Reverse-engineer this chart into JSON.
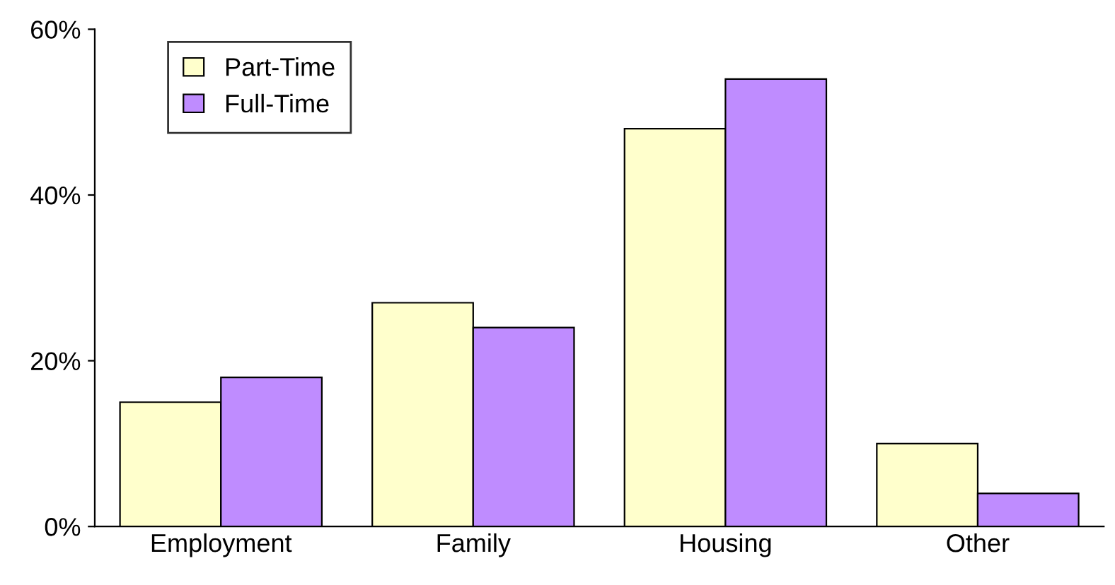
{
  "chart_data": {
    "type": "bar",
    "categories": [
      "Employment",
      "Family",
      "Housing",
      "Other"
    ],
    "series": [
      {
        "name": "Part-Time",
        "color": "#ffffcc",
        "values": [
          15,
          27,
          48,
          10
        ]
      },
      {
        "name": "Full-Time",
        "color": "#bf8cff",
        "values": [
          18,
          24,
          54,
          4
        ]
      }
    ],
    "ylim": [
      0,
      60
    ],
    "yticks": [
      {
        "value": 0,
        "label": "0%"
      },
      {
        "value": 20,
        "label": "20%"
      },
      {
        "value": 40,
        "label": "40%"
      },
      {
        "value": 60,
        "label": "60%"
      }
    ],
    "legend": "top left",
    "grid": false
  }
}
